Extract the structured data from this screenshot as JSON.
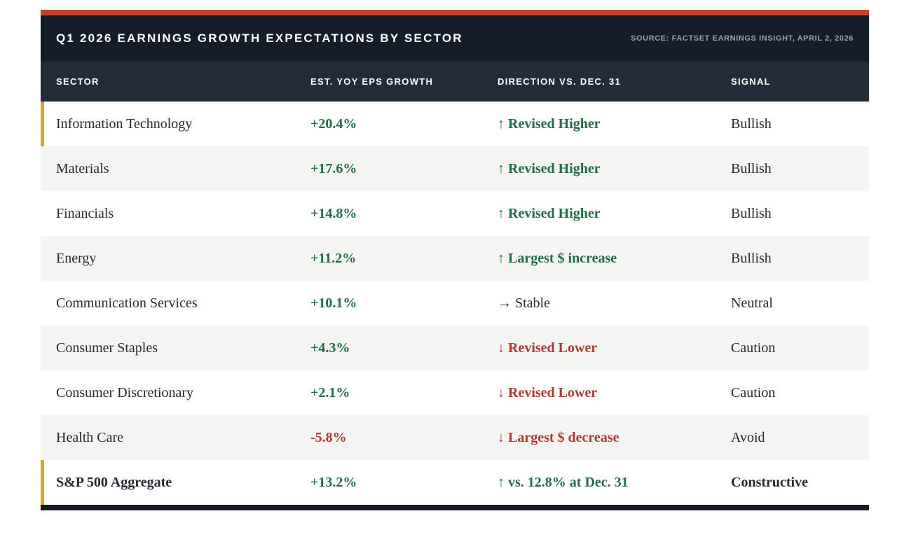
{
  "table": {
    "title": "Q1 2026 EARNINGS GROWTH EXPECTATIONS BY SECTOR",
    "source": "SOURCE: FACTSET EARNINGS INSIGHT, APRIL 2, 2026",
    "columns": [
      "SECTOR",
      "EST. YOY EPS GROWTH",
      "DIRECTION VS. DEC. 31",
      "SIGNAL"
    ],
    "rows": [
      {
        "sector": "Information Technology",
        "growth": "+20.4%",
        "growth_tone": "green",
        "direction": "↑ Revised Higher",
        "direction_tone": "green",
        "signal": "Bullish",
        "accent": true,
        "alt": false,
        "emphasis": false
      },
      {
        "sector": "Materials",
        "growth": "+17.6%",
        "growth_tone": "green",
        "direction": "↑ Revised Higher",
        "direction_tone": "green",
        "signal": "Bullish",
        "accent": false,
        "alt": true,
        "emphasis": false
      },
      {
        "sector": "Financials",
        "growth": "+14.8%",
        "growth_tone": "green",
        "direction": "↑ Revised Higher",
        "direction_tone": "green",
        "signal": "Bullish",
        "accent": false,
        "alt": false,
        "emphasis": false
      },
      {
        "sector": "Energy",
        "growth": "+11.2%",
        "growth_tone": "green",
        "direction": "↑ Largest $ increase",
        "direction_tone": "green",
        "signal": "Bullish",
        "accent": false,
        "alt": true,
        "emphasis": false
      },
      {
        "sector": "Communication Services",
        "growth": "+10.1%",
        "growth_tone": "green",
        "direction": "→ Stable",
        "direction_tone": "neutral",
        "signal": "Neutral",
        "accent": false,
        "alt": false,
        "emphasis": false
      },
      {
        "sector": "Consumer Staples",
        "growth": "+4.3%",
        "growth_tone": "green",
        "direction": "↓ Revised Lower",
        "direction_tone": "red",
        "signal": "Caution",
        "accent": false,
        "alt": true,
        "emphasis": false
      },
      {
        "sector": "Consumer Discretionary",
        "growth": "+2.1%",
        "growth_tone": "green",
        "direction": "↓ Revised Lower",
        "direction_tone": "red",
        "signal": "Caution",
        "accent": false,
        "alt": false,
        "emphasis": false
      },
      {
        "sector": "Health Care",
        "growth": "-5.8%",
        "growth_tone": "red",
        "direction": "↓ Largest $ decrease",
        "direction_tone": "red",
        "signal": "Avoid",
        "accent": false,
        "alt": true,
        "emphasis": false
      },
      {
        "sector": "S&P 500 Aggregate",
        "growth": "+13.2%",
        "growth_tone": "green",
        "direction": "↑ vs. 12.8% at Dec. 31",
        "direction_tone": "green",
        "signal": "Constructive",
        "accent": true,
        "alt": false,
        "emphasis": true
      }
    ]
  },
  "colors": {
    "accent_red_bar": "#c2402f",
    "gold_accent": "#d4a72f",
    "positive_green": "#216b45",
    "negative_red": "#ac3a33",
    "title_navy": "#161d2a",
    "header_navy": "#232c39",
    "alt_row_bg": "#f4f4f3",
    "bottom_bar": "#171a22"
  },
  "chart_data": {
    "type": "table",
    "title": "Q1 2026 Earnings Growth Expectations by Sector",
    "subtitle": "Source: FactSet Earnings Insight, April 2, 2026",
    "columns": [
      "Sector",
      "Est. YoY EPS Growth (%)",
      "Direction vs. Dec. 31",
      "Signal"
    ],
    "rows": [
      [
        "Information Technology",
        20.4,
        "Revised Higher",
        "Bullish"
      ],
      [
        "Materials",
        17.6,
        "Revised Higher",
        "Bullish"
      ],
      [
        "Financials",
        14.8,
        "Revised Higher",
        "Bullish"
      ],
      [
        "Energy",
        11.2,
        "Largest $ increase",
        "Bullish"
      ],
      [
        "Communication Services",
        10.1,
        "Stable",
        "Neutral"
      ],
      [
        "Consumer Staples",
        4.3,
        "Revised Lower",
        "Caution"
      ],
      [
        "Consumer Discretionary",
        2.1,
        "Revised Lower",
        "Caution"
      ],
      [
        "Health Care",
        -5.8,
        "Largest $ decrease",
        "Avoid"
      ],
      [
        "S&P 500 Aggregate",
        13.2,
        "vs. 12.8% at Dec. 31",
        "Constructive"
      ]
    ]
  }
}
